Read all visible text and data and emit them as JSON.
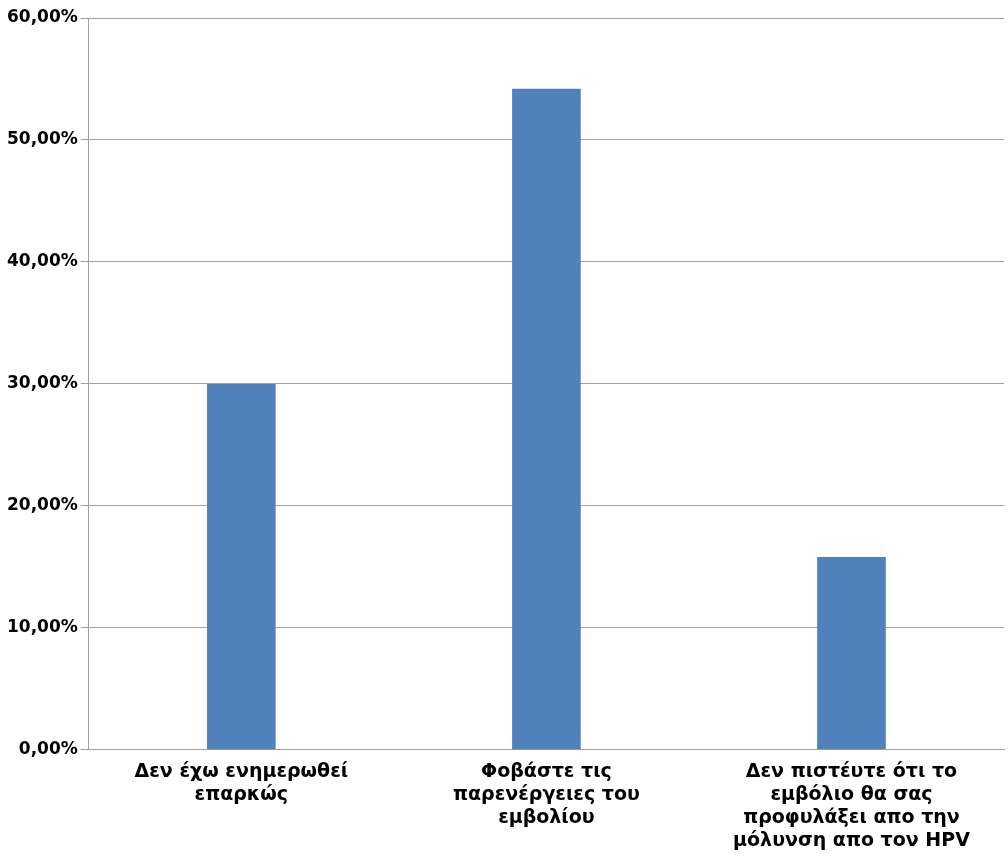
{
  "chart_data": {
    "type": "bar",
    "categories": [
      "Δεν έχω ενημερωθεί επαρκώς",
      "Φοβάστε τις παρενέργειες του εμβολίου",
      "Δεν πιστέυτε ότι το εμβόλιο θα σας προφυλάξει απο την μόλυνση απο τον HPV"
    ],
    "values": [
      30,
      54.2,
      15.8
    ],
    "color": "#4f81bd",
    "ylim": [
      0,
      60
    ],
    "yticks": [
      {
        "value": 0,
        "label": "0,00%"
      },
      {
        "value": 10,
        "label": "10,00%"
      },
      {
        "value": 20,
        "label": "20,00%"
      },
      {
        "value": 30,
        "label": "30,00%"
      },
      {
        "value": 40,
        "label": "40,00%"
      },
      {
        "value": 50,
        "label": "50,00%"
      },
      {
        "value": 60,
        "label": "60,00%"
      }
    ],
    "grid": "y",
    "legend": false
  }
}
